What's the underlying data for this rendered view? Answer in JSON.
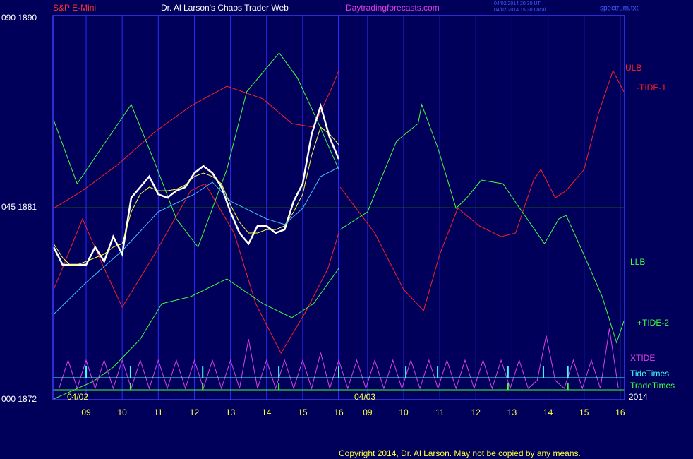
{
  "chart_data": {
    "type": "line",
    "header": {
      "instrument": "S&P E-Mini",
      "title": "Dr. Al Larson's Chaos Trader Web",
      "site": "Daytradingforecasts.com",
      "time_ut": "04/02/2014 20:30 UT",
      "time_local": "04/02/2014 15:30 Local",
      "file": "spectrum.txt"
    },
    "annotations": {
      "day1": "04/02",
      "day2": "04/03",
      "year": "2014"
    },
    "footer": "Copyright 2014, Dr. Al Larson. May not be copied by any means.",
    "xlim": [
      8.08,
      23.92
    ],
    "xticks": [
      {
        "value": 9,
        "label": "09"
      },
      10,
      11,
      12,
      13,
      14,
      15,
      16,
      {
        "value": 16.8,
        "label": "09"
      },
      {
        "value": 17.8,
        "label": "10"
      },
      {
        "value": 18.8,
        "label": "11"
      },
      {
        "value": 19.8,
        "label": "12"
      },
      {
        "value": 20.8,
        "label": "13"
      },
      {
        "value": 21.8,
        "label": "14"
      },
      {
        "value": 22.8,
        "label": "15"
      },
      {
        "value": 23.8,
        "label": "16"
      }
    ],
    "ylim": [
      1872,
      1890
    ],
    "yticks": [
      {
        "value": 1890,
        "label": "090 1890"
      },
      {
        "value": 1881,
        "label": "045 1881"
      },
      {
        "value": 1872,
        "label": "000 1872"
      }
    ],
    "grid": true,
    "series": [
      {
        "name": "ULB",
        "color": "#ff2020",
        "x": [
          8.1,
          8.9,
          9.9,
          10.9,
          11.9,
          12.9,
          13.9,
          14.7,
          15.3,
          15.8,
          16
        ],
        "values": [
          1880.97,
          1881.79,
          1883.05,
          1884.54,
          1885.76,
          1886.69,
          1886.1,
          1884.94,
          1884.77,
          1886.59,
          1887.42
        ]
      },
      {
        "name": "-TIDE-1",
        "color": "#ff2020",
        "x": [
          8.1,
          8.9,
          9.5,
          10,
          10.9,
          11.9,
          12.3,
          13.1,
          13.7,
          14.4,
          15.1,
          15.7,
          16,
          16.02,
          16.04,
          17,
          17.8,
          18.35,
          18.8,
          19.3,
          19.9,
          20.5,
          20.9,
          21.4,
          21.6,
          22,
          22.3,
          22.8,
          23.2,
          23.6,
          23.9
        ],
        "values": [
          1877.16,
          1880.47,
          1878.15,
          1876.33,
          1878.82,
          1881.79,
          1882.12,
          1879.81,
          1876.5,
          1874.18,
          1876.17,
          1878.15,
          1879.81,
          null,
          1881.96,
          1879.81,
          1877.16,
          1876.17,
          1878.82,
          1880.97,
          1880.14,
          1879.64,
          1879.81,
          1882.29,
          1882.79,
          1881.46,
          1881.79,
          1882.79,
          1885.43,
          1887.42,
          1886.43
        ]
      },
      {
        "name": "LLB",
        "color": "#40ff40",
        "x": [
          8.1,
          9.2,
          9.75,
          10.5,
          11.1,
          11.9,
          12.9,
          13.9,
          14.7,
          15.3,
          16
        ],
        "values": [
          1872.03,
          1872.86,
          1873.52,
          1874.84,
          1876.5,
          1876.83,
          1877.66,
          1876.5,
          1875.84,
          1876.5,
          1878.15
        ]
      },
      {
        "name": "+TIDE-2",
        "color": "#40ff40",
        "x": [
          8.1,
          8.75,
          9.55,
          10.25,
          10.9,
          11.5,
          12.1,
          12.9,
          13.45,
          14.35,
          14.85,
          15.4,
          16,
          16.02,
          16.04,
          16.8,
          17.6,
          18.2,
          18.3,
          18.75,
          19.25,
          19.55,
          19.95,
          20.55,
          20.95,
          21.7,
          22.1,
          22.3,
          22.7,
          23.3,
          23.7,
          23.9
        ],
        "values": [
          1885.1,
          1882.12,
          1884.11,
          1885.83,
          1883.12,
          1880.47,
          1879.15,
          1882.79,
          1886.43,
          1888.25,
          1887.09,
          1885.1,
          1882.79,
          null,
          1879.97,
          1880.8,
          1884.11,
          1884.94,
          1885.83,
          1883.78,
          1880.97,
          1881.46,
          1882.29,
          1882.12,
          1881.13,
          1879.31,
          1880.47,
          1880.64,
          1879.15,
          1876.83,
          1874.68,
          1875.67
        ]
      },
      {
        "name": "XTIDE",
        "color": "#e040e0",
        "x": [
          8.25,
          8.5,
          8.75,
          9,
          9.25,
          9.5,
          9.75,
          10,
          10.25,
          10.5,
          10.75,
          11,
          11.25,
          11.5,
          11.75,
          12,
          12.25,
          12.5,
          12.75,
          13,
          13.25,
          13.5,
          13.75,
          14,
          14.25,
          14.5,
          14.75,
          15,
          15.25,
          15.5,
          15.75,
          16,
          16.25,
          16.5,
          16.75,
          17,
          17.25,
          17.5,
          17.75,
          18,
          18.25,
          18.5,
          18.75,
          19,
          19.25,
          19.5,
          19.75,
          20,
          20.25,
          20.5,
          20.75,
          21,
          21.25,
          21.5,
          21.75,
          22,
          22.25,
          22.5,
          22.75,
          23,
          23.25,
          23.5,
          23.75
        ],
        "values": [
          1872.53,
          1873.85,
          1872.53,
          1873.85,
          1872.53,
          1873.85,
          1872.53,
          1873.85,
          1872.53,
          1873.85,
          1872.53,
          1873.85,
          1872.53,
          1873.85,
          1872.53,
          1873.85,
          1872.53,
          1873.85,
          1872.53,
          1873.85,
          1872.53,
          1874.84,
          1872.53,
          1873.85,
          1872.53,
          1873.85,
          1872.53,
          1873.85,
          1872.53,
          1874.2,
          1872.53,
          1873.85,
          1872.53,
          1873.85,
          1872.53,
          1873.85,
          1872.53,
          1873.85,
          1872.53,
          1873.85,
          1872.53,
          1873.85,
          1872.53,
          1873.85,
          1872.53,
          1873.85,
          1872.53,
          1873.85,
          1872.53,
          1873.85,
          1872.53,
          1873.85,
          1872.53,
          1872.9,
          1875.0,
          1872.9,
          1872.53,
          1873.85,
          1872.53,
          1873.85,
          1872.53,
          1875.33,
          1872.53
        ]
      },
      {
        "name": "TideTimes",
        "color": "#40ffff",
        "x": [
          9,
          10.23,
          12.23,
          14.34,
          16.0,
          17.86,
          18.74,
          20.69,
          21.67,
          22.35
        ]
      },
      {
        "name": "TradeTimes",
        "color": "#40ff40",
        "x": [
          10.23,
          12.23,
          14.34,
          20.69,
          22.35
        ]
      },
      {
        "color": "#ffffff",
        "x": [
          8.1,
          8.35,
          8.55,
          8.75,
          9,
          9.25,
          9.5,
          9.75,
          10,
          10.25,
          10.5,
          10.75,
          11,
          11.25,
          11.5,
          11.75,
          12,
          12.25,
          12.5,
          12.75,
          13,
          13.25,
          13.5,
          13.75,
          14,
          14.25,
          14.5,
          14.75,
          15,
          15.25,
          15.5,
          15.75,
          16
        ],
        "values": [
          1879.15,
          1878.32,
          1878.32,
          1878.32,
          1878.32,
          1879.15,
          1878.48,
          1879.64,
          1878.82,
          1881.46,
          1881.96,
          1882.46,
          1881.63,
          1881.46,
          1881.79,
          1881.96,
          1882.62,
          1882.95,
          1882.62,
          1881.96,
          1880.8,
          1879.81,
          1879.31,
          1880.14,
          1880.14,
          1879.81,
          1879.97,
          1881.3,
          1882.12,
          1884.44,
          1885.76,
          1884.28,
          1883.28
        ]
      },
      {
        "color": "#ffff40",
        "x": [
          8.1,
          8.35,
          8.55,
          8.75,
          9,
          9.25,
          9.5,
          9.75,
          10,
          10.25,
          10.5,
          10.75,
          11,
          11.25,
          11.5,
          11.75,
          12,
          12.25,
          12.5,
          12.75,
          13,
          13.25,
          13.5,
          13.75,
          14,
          14.25,
          14.5,
          14.75,
          15,
          15.25,
          15.5,
          15.75,
          16
        ],
        "values": [
          1879.31,
          1878.65,
          1878.32,
          1878.32,
          1878.48,
          1878.65,
          1878.82,
          1879.15,
          1879.31,
          1880.8,
          1881.63,
          1881.96,
          1881.79,
          1881.79,
          1881.86,
          1882.06,
          1882.46,
          1882.62,
          1882.46,
          1882.12,
          1881.13,
          1880.31,
          1879.81,
          1879.81,
          1879.97,
          1879.97,
          1880.14,
          1880.8,
          1881.63,
          1883.45,
          1884.77,
          1884.44,
          1883.95
        ]
      },
      {
        "color": "#40c0ff",
        "x": [
          8.1,
          9,
          10,
          11,
          12,
          12.5,
          13,
          14,
          14.5,
          15,
          15.5,
          16
        ],
        "values": [
          1876.0,
          1877.49,
          1878.98,
          1880.8,
          1881.63,
          1882.19,
          1881.3,
          1880.47,
          1880.21,
          1880.97,
          1882.46,
          1882.89
        ]
      }
    ]
  }
}
